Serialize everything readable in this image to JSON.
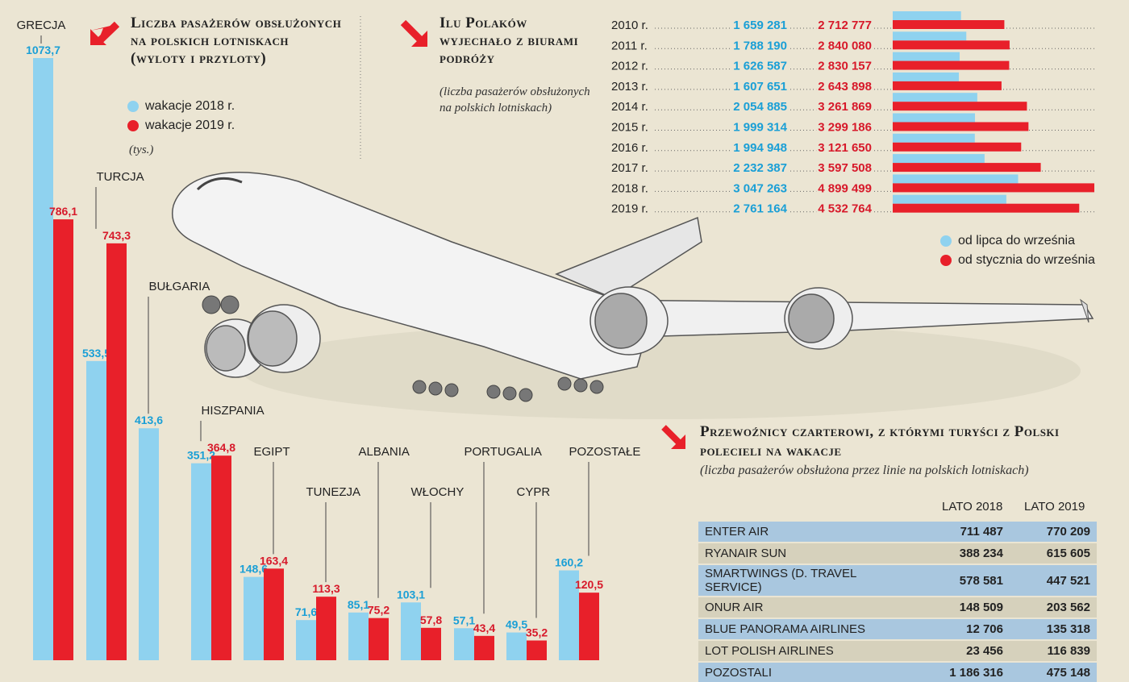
{
  "colors": {
    "series2018": "#8fd2ef",
    "series2019": "#e8202a",
    "arrow": "#e8202a",
    "blue_label": "#1a9fd6",
    "red_label": "#d7192a"
  },
  "panel1": {
    "title": "Liczba pasażerów obsłużonych na polskich lotniskach (wyloty i przyloty)",
    "unit": "(tys.)",
    "legend": [
      "wakacje 2018 r.",
      "wakacje 2019 r."
    ]
  },
  "panel2": {
    "title": "Ilu Polaków wyjechało z biurami podróży",
    "subtitle": "(liczba pasażerów obsłużonych na polskich lotniskach)",
    "legend": [
      "od lipca do września",
      "od stycznia do września"
    ]
  },
  "panel3": {
    "title": "Przewoźnicy czarterowi, z którymi turyści z Polski polecieli na wakacje",
    "subtitle": "(liczba pasażerów obsłużona przez linie na polskich lotniskach)",
    "columns": [
      "LATO 2018",
      "LATO 2019"
    ],
    "rows": [
      {
        "name": "ENTER AIR",
        "v2018": "711 487",
        "v2019": "770 209"
      },
      {
        "name": "RYANAIR SUN",
        "v2018": "388 234",
        "v2019": "615 605"
      },
      {
        "name": "SMARTWINGS (D. TRAVEL SERVICE)",
        "v2018": "578 581",
        "v2019": "447 521"
      },
      {
        "name": "ONUR AIR",
        "v2018": "148 509",
        "v2019": "203 562"
      },
      {
        "name": "BLUE PANORAMA AIRLINES",
        "v2018": "12 706",
        "v2019": "135 318"
      },
      {
        "name": "LOT POLISH AIRLINES",
        "v2018": "23 456",
        "v2019": "116 839"
      },
      {
        "name": "POZOSTALI",
        "v2018": "1 186 316",
        "v2019": "475 148"
      }
    ]
  },
  "chart_data": [
    {
      "type": "bar",
      "categories": [
        "GRECJA",
        "TURCJA",
        "BUŁGARIA",
        "HISZPANIA",
        "EGIPT",
        "TUNEZJA",
        "ALBANIA",
        "WŁOCHY",
        "PORTUGALIA",
        "CYPR",
        "POZOSTAŁE"
      ],
      "series": [
        {
          "name": "wakacje 2018 r.",
          "values": [
            1073.7,
            533.5,
            413.6,
            351.2,
            148.6,
            71.6,
            85.1,
            103.1,
            57.1,
            49.5,
            160.2
          ],
          "labels": [
            "1073,7",
            "533,5",
            "413,6",
            "351,2",
            "148,6",
            "71,6",
            "85,1",
            "103,1",
            "57,1",
            "49,5",
            "160,2"
          ]
        },
        {
          "name": "wakacje 2019 r.",
          "values": [
            786.1,
            743.3,
            0,
            364.8,
            163.4,
            113.3,
            75.2,
            57.8,
            43.4,
            35.2,
            120.5
          ],
          "labels": [
            "786,1",
            "743,3",
            "",
            "364,8",
            "163,4",
            "113,3",
            "75,2",
            "57,8",
            "43,4",
            "35,2",
            "120,5"
          ]
        }
      ],
      "ylim": [
        0,
        1100
      ]
    },
    {
      "type": "bar",
      "categories": [
        "2010 r.",
        "2011 r.",
        "2012 r.",
        "2013 r.",
        "2014 r.",
        "2015 r.",
        "2016 r.",
        "2017 r.",
        "2018 r.",
        "2019 r."
      ],
      "series": [
        {
          "name": "od lipca do września",
          "values": [
            1659281,
            1788190,
            1626587,
            1607651,
            2054885,
            1999314,
            1994948,
            2232387,
            3047263,
            2761164
          ],
          "labels": [
            "1 659 281",
            "1 788 190",
            "1 626 587",
            "1 607 651",
            "2 054 885",
            "1 999 314",
            "1 994 948",
            "2 232 387",
            "3 047 263",
            "2 761 164"
          ]
        },
        {
          "name": "od stycznia do września",
          "values": [
            2712777,
            2840080,
            2830157,
            2643898,
            3261869,
            3299186,
            3121650,
            3597508,
            4899499,
            4532764
          ],
          "labels": [
            "2 712 777",
            "2 840 080",
            "2 830 157",
            "2 643 898",
            "3 261 869",
            "3 299 186",
            "3 121 650",
            "3 597 508",
            "4 899 499",
            "4 532 764"
          ]
        }
      ]
    }
  ]
}
